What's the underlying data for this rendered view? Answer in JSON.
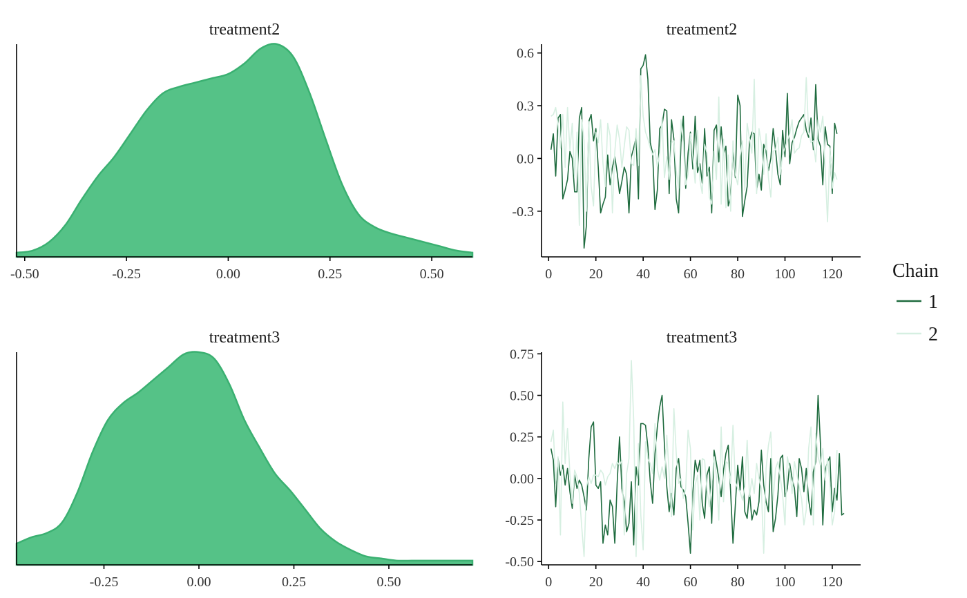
{
  "colors": {
    "density_fill": "#55c287",
    "density_line": "#3ab071",
    "chain1": "#1e6b3e",
    "chain2": "#d6efe1",
    "axis": "#000000"
  },
  "legend": {
    "title": "Chain",
    "items": [
      {
        "label": "1",
        "color": "#1e6b3e"
      },
      {
        "label": "2",
        "color": "#d6efe1"
      }
    ],
    "position": "right"
  },
  "chart_data": [
    {
      "type": "area",
      "title": "treatment2",
      "xlim": [
        -0.52,
        0.6
      ],
      "ylim": [
        0,
        1
      ],
      "xticks": [
        -0.5,
        -0.25,
        0.0,
        0.25,
        0.5
      ],
      "xtick_labels": [
        "-0.50",
        "-0.25",
        "0.00",
        "0.25",
        "0.50"
      ],
      "x": [
        -0.52,
        -0.48,
        -0.44,
        -0.4,
        -0.36,
        -0.32,
        -0.28,
        -0.24,
        -0.2,
        -0.16,
        -0.12,
        -0.08,
        -0.04,
        0.0,
        0.04,
        0.08,
        0.12,
        0.16,
        0.2,
        0.24,
        0.28,
        0.32,
        0.36,
        0.4,
        0.44,
        0.48,
        0.52,
        0.56,
        0.6
      ],
      "y": [
        0.02,
        0.03,
        0.07,
        0.15,
        0.27,
        0.38,
        0.47,
        0.58,
        0.69,
        0.77,
        0.8,
        0.82,
        0.84,
        0.86,
        0.91,
        0.98,
        1.0,
        0.94,
        0.77,
        0.55,
        0.34,
        0.2,
        0.14,
        0.11,
        0.09,
        0.07,
        0.05,
        0.03,
        0.02
      ]
    },
    {
      "type": "line",
      "title": "treatment2",
      "xlim": [
        -3,
        132
      ],
      "ylim": [
        -0.56,
        0.65
      ],
      "xticks": [
        0,
        20,
        40,
        60,
        80,
        100,
        120
      ],
      "xtick_labels": [
        "0",
        "20",
        "40",
        "60",
        "80",
        "100",
        "120"
      ],
      "yticks": [
        -0.3,
        0.0,
        0.3,
        0.6
      ],
      "ytick_labels": [
        "-0.3",
        "0.0",
        "0.3",
        "0.6"
      ],
      "x_start": 1,
      "series": [
        {
          "name": "1",
          "values": [
            0.05,
            0.14,
            -0.1,
            0.23,
            0.25,
            -0.23,
            -0.18,
            -0.12,
            0.04,
            0.0,
            -0.19,
            -0.19,
            0.23,
            0.29,
            -0.51,
            -0.38,
            0.21,
            0.25,
            0.1,
            0.17,
            -0.05,
            -0.31,
            -0.26,
            -0.22,
            0.02,
            -0.15,
            -0.05,
            0.01,
            -0.08,
            -0.2,
            -0.13,
            -0.05,
            -0.09,
            -0.31,
            0.01,
            0.06,
            0.12,
            -0.23,
            0.51,
            0.53,
            0.59,
            0.45,
            0.09,
            0.03,
            -0.29,
            -0.18,
            0.17,
            0.19,
            0.28,
            0.27,
            -0.2,
            0.22,
            0.11,
            -0.23,
            -0.31,
            0.09,
            0.24,
            -0.17,
            0.03,
            0.15,
            -0.06,
            0.24,
            -0.08,
            -0.03,
            -0.14,
            0.17,
            -0.1,
            -0.05,
            -0.31,
            0.16,
            0.19,
            -0.02,
            0.18,
            0.02,
            0.07,
            -0.27,
            -0.22,
            0.05,
            -0.11,
            0.36,
            0.3,
            -0.33,
            -0.24,
            -0.16,
            0.1,
            0.15,
            0.14,
            -0.18,
            -0.09,
            -0.18,
            0.08,
            0.04,
            -0.07,
            0.0,
            0.17,
            0.05,
            -0.09,
            -0.15,
            0.16,
            0.01,
            0.37,
            -0.03,
            0.09,
            0.12,
            0.17,
            0.21,
            0.23,
            0.25,
            0.16,
            0.12,
            0.23,
            0.05,
            0.42,
            0.11,
            0.07,
            -0.15,
            0.18,
            0.08,
            0.07,
            -0.2,
            0.2,
            0.14
          ]
        },
        {
          "name": "2",
          "values": [
            0.24,
            0.25,
            0.29,
            0.19,
            0.06,
            0.25,
            -0.05,
            0.29,
            0.05,
            0.2,
            -0.11,
            0.15,
            -0.38,
            0.22,
            0.1,
            -0.3,
            0.21,
            -0.16,
            -0.27,
            0.15,
            0.09,
            0.22,
            -0.03,
            -0.16,
            0.2,
            0.13,
            -0.31,
            0.04,
            0.19,
            0.11,
            -0.05,
            0.07,
            0.18,
            0.16,
            -0.03,
            -0.04,
            0.17,
            -0.04,
            0.47,
            0.24,
            0.15,
            0.11,
            0.06,
            0.02,
            0.05,
            -0.05,
            0.03,
            0.23,
            -0.11,
            0.01,
            -0.12,
            0.09,
            0.1,
            -0.07,
            -0.17,
            0.22,
            0.08,
            -0.15,
            -0.09,
            0.14,
            0.01,
            -0.14,
            0.16,
            -0.12,
            -0.2,
            0.08,
            0.03,
            -0.22,
            -0.26,
            0.04,
            -0.12,
            0.35,
            -0.26,
            0.11,
            -0.28,
            0.02,
            -0.3,
            0.1,
            -0.09,
            -0.15,
            0.01,
            0.1,
            -0.18,
            0.2,
            0.11,
            0.03,
            0.45,
            -0.2,
            0.17,
            0.08,
            -0.09,
            0.14,
            -0.11,
            -0.22,
            0.04,
            0.05,
            0.12,
            -0.09,
            0.02,
            0.06,
            0.1,
            0.14,
            0.22,
            0.03,
            0.05,
            0.06,
            0.13,
            0.15,
            0.46,
            0.15,
            0.09,
            0.1,
            -0.02,
            0.22,
            0.15,
            0.24,
            -0.06,
            -0.36,
            0.06,
            -0.17,
            -0.08,
            -0.12
          ]
        }
      ]
    },
    {
      "type": "area",
      "title": "treatment3",
      "xlim": [
        -0.48,
        0.72
      ],
      "ylim": [
        0,
        1
      ],
      "xticks": [
        -0.25,
        0.0,
        0.25,
        0.5
      ],
      "xtick_labels": [
        "-0.25",
        "0.00",
        "0.25",
        "0.50"
      ],
      "x": [
        -0.48,
        -0.44,
        -0.4,
        -0.36,
        -0.32,
        -0.28,
        -0.24,
        -0.2,
        -0.16,
        -0.12,
        -0.08,
        -0.04,
        0.0,
        0.04,
        0.08,
        0.12,
        0.16,
        0.2,
        0.24,
        0.28,
        0.32,
        0.36,
        0.4,
        0.44,
        0.48,
        0.52,
        0.56,
        0.6,
        0.64,
        0.68,
        0.72
      ],
      "y": [
        0.1,
        0.13,
        0.15,
        0.2,
        0.34,
        0.53,
        0.68,
        0.76,
        0.81,
        0.87,
        0.93,
        0.99,
        1.0,
        0.97,
        0.85,
        0.68,
        0.55,
        0.43,
        0.35,
        0.26,
        0.17,
        0.11,
        0.07,
        0.04,
        0.03,
        0.02,
        0.02,
        0.02,
        0.02,
        0.02,
        0.02
      ]
    },
    {
      "type": "line",
      "title": "treatment3",
      "xlim": [
        -3,
        132
      ],
      "ylim": [
        -0.52,
        0.76
      ],
      "xticks": [
        0,
        20,
        40,
        60,
        80,
        100,
        120
      ],
      "xtick_labels": [
        "0",
        "20",
        "40",
        "60",
        "80",
        "100",
        "120"
      ],
      "yticks": [
        -0.5,
        -0.25,
        0.0,
        0.25,
        0.5,
        0.75
      ],
      "ytick_labels": [
        "-0.50",
        "-0.25",
        "0.00",
        "0.25",
        "0.50",
        "0.75"
      ],
      "x_start": 1,
      "series": [
        {
          "name": "1",
          "values": [
            0.18,
            0.11,
            -0.17,
            0.12,
            0.02,
            0.08,
            -0.04,
            0.06,
            -0.08,
            -0.18,
            0.02,
            -0.06,
            -0.01,
            -0.04,
            -0.11,
            -0.19,
            0.12,
            0.31,
            0.34,
            -0.04,
            -0.06,
            -0.02,
            -0.39,
            -0.28,
            -0.34,
            -0.13,
            -0.17,
            -0.39,
            -0.03,
            0.25,
            -0.06,
            -0.14,
            -0.32,
            -0.27,
            -0.02,
            -0.4,
            0.07,
            -0.04,
            0.33,
            0.33,
            0.32,
            0.19,
            -0.02,
            -0.15,
            0.15,
            0.31,
            0.43,
            0.5,
            0.2,
            -0.05,
            -0.2,
            -0.09,
            -0.22,
            0.06,
            0.12,
            -0.05,
            -0.07,
            -0.11,
            -0.27,
            -0.45,
            -0.09,
            0.11,
            0.04,
            0.11,
            -0.15,
            -0.24,
            0.02,
            0.07,
            -0.27,
            0.17,
            0.09,
            0.0,
            -0.11,
            0.05,
            0.15,
            0.2,
            -0.08,
            -0.39,
            -0.16,
            0.08,
            -0.07,
            0.13,
            -0.2,
            -0.24,
            -0.08,
            -0.25,
            -0.19,
            -0.22,
            -0.14,
            0.17,
            -0.04,
            -0.14,
            -0.2,
            0.12,
            -0.32,
            -0.24,
            -0.1,
            0.12,
            0.14,
            -0.11,
            -0.06,
            0.09,
            0.0,
            -0.06,
            -0.23,
            0.12,
            0.06,
            -0.08,
            0.06,
            -0.13,
            -0.22,
            0.04,
            0.1,
            0.5,
            0.21,
            -0.28,
            0.05,
            0.1,
            0.13,
            -0.2,
            -0.06,
            -0.13,
            0.15,
            -0.22,
            -0.21
          ]
        },
        {
          "name": "2",
          "values": [
            0.22,
            0.29,
            -0.03,
            0.13,
            -0.34,
            0.46,
            0.09,
            0.3,
            0.03,
            -0.15,
            0.05,
            0.01,
            -0.09,
            -0.29,
            -0.47,
            -0.05,
            0.01,
            -0.03,
            0.02,
            0.02,
            0.01,
            0.05,
            0.03,
            -0.04,
            0.01,
            0.03,
            0.09,
            0.06,
            0.1,
            0.08,
            0.11,
            -0.34,
            0.03,
            0.12,
            0.71,
            0.35,
            -0.47,
            0.21,
            -0.22,
            -0.43,
            0.22,
            0.12,
            0.09,
            0.03,
            0.33,
            0.06,
            -0.01,
            0.07,
            0.0,
            0.26,
            0.03,
            -0.23,
            0.42,
            0.15,
            -0.03,
            0.0,
            -0.12,
            -0.06,
            0.29,
            0.18,
            -0.31,
            -0.04,
            0.02,
            -0.25,
            0.12,
            0.11,
            -0.07,
            -0.17,
            -0.03,
            0.13,
            0.01,
            -0.25,
            0.31,
            -0.14,
            0.1,
            0.09,
            -0.03,
            0.32,
            -0.02,
            -0.06,
            -0.08,
            -0.13,
            -0.05,
            0.23,
            -0.11,
            0.0,
            -0.09,
            0.09,
            0.0,
            -0.06,
            -0.45,
            0.06,
            0.2,
            0.28,
            -0.13,
            0.06,
            0.1,
            0.01,
            -0.1,
            -0.28,
            0.13,
            0.06,
            -0.09,
            0.1,
            0.03,
            -0.05,
            -0.12,
            -0.28,
            -0.19,
            0.18,
            0.31,
            -0.28,
            0.27,
            0.13,
            0.08,
            0.18,
            -0.01,
            0.12,
            -0.03,
            -0.28,
            -0.2,
            0.17
          ]
        }
      ]
    }
  ]
}
